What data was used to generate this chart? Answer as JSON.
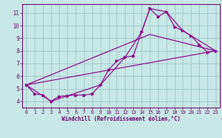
{
  "background_color": "#c8e8e8",
  "grid_color": "#a0c8c8",
  "line_color": "#880088",
  "xlabel": "Windchill (Refroidissement éolien,°C)",
  "xlabel_color": "#660066",
  "tick_color": "#660066",
  "xlim": [
    -0.5,
    23.5
  ],
  "ylim": [
    3.5,
    11.7
  ],
  "xticks": [
    0,
    1,
    2,
    3,
    4,
    5,
    6,
    7,
    8,
    9,
    10,
    11,
    12,
    13,
    14,
    15,
    16,
    17,
    18,
    19,
    20,
    21,
    22,
    23
  ],
  "yticks": [
    4,
    5,
    6,
    7,
    8,
    9,
    10,
    11
  ],
  "series1": [
    [
      0,
      5.3
    ],
    [
      1,
      4.6
    ],
    [
      2,
      4.5
    ],
    [
      3,
      4.0
    ],
    [
      4,
      4.4
    ],
    [
      5,
      4.45
    ],
    [
      6,
      4.5
    ],
    [
      7,
      4.5
    ],
    [
      8,
      4.6
    ],
    [
      9,
      5.3
    ],
    [
      10,
      6.5
    ],
    [
      11,
      7.2
    ],
    [
      12,
      7.5
    ],
    [
      13,
      7.6
    ],
    [
      14,
      9.5
    ],
    [
      15,
      11.35
    ],
    [
      16,
      10.7
    ],
    [
      17,
      11.1
    ],
    [
      18,
      9.9
    ],
    [
      19,
      9.6
    ],
    [
      20,
      9.2
    ],
    [
      21,
      8.5
    ],
    [
      22,
      7.9
    ],
    [
      23,
      8.0
    ]
  ],
  "series2": [
    [
      0,
      5.3
    ],
    [
      3,
      4.0
    ],
    [
      9,
      5.3
    ],
    [
      12,
      7.5
    ],
    [
      14,
      9.5
    ],
    [
      15,
      11.35
    ],
    [
      17,
      11.1
    ],
    [
      19,
      9.6
    ],
    [
      20,
      9.2
    ],
    [
      23,
      8.0
    ]
  ],
  "series3": [
    [
      0,
      5.3
    ],
    [
      23,
      8.0
    ]
  ],
  "series4": [
    [
      0,
      5.3
    ],
    [
      15,
      9.3
    ],
    [
      23,
      8.0
    ]
  ]
}
